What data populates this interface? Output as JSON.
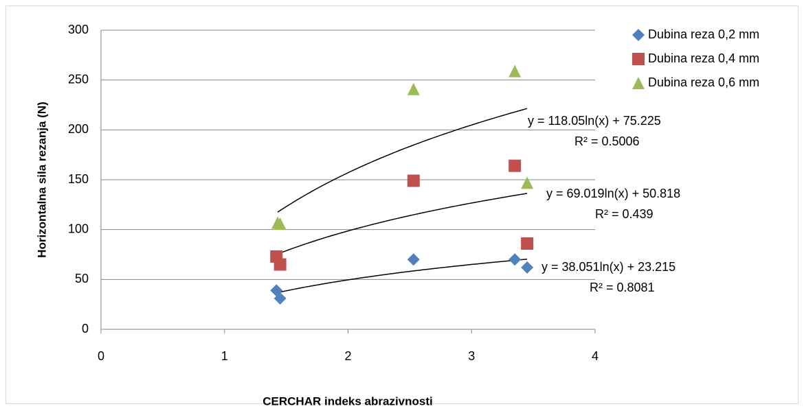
{
  "chart_data": {
    "type": "scatter",
    "xlabel": "CERCHAR indeks abrazivnosti",
    "ylabel": "Horizontalna sila rezanja (N)",
    "xlim": [
      0,
      4
    ],
    "xticks": [
      0,
      1,
      2,
      3,
      4
    ],
    "ylim": [
      0,
      300
    ],
    "yticks": [
      0,
      50,
      100,
      150,
      200,
      250,
      300
    ],
    "grid": true,
    "legend": "right",
    "series": [
      {
        "name": "Dubina reza 0,2 mm",
        "color": "#4f81bd",
        "marker": "diamond",
        "x": [
          1.42,
          1.45,
          2.53,
          3.35,
          3.45
        ],
        "values": [
          39,
          31,
          70,
          70,
          62
        ],
        "trendline": "y = 38.051ln(x) + 23.215",
        "r2": "R² = 0.8081"
      },
      {
        "name": "Dubina reza 0,4 mm",
        "color": "#c0504d",
        "marker": "square",
        "x": [
          1.42,
          1.45,
          2.53,
          3.35,
          3.45
        ],
        "values": [
          73,
          65,
          149,
          164,
          86
        ],
        "trendline": "y = 69.019ln(x) + 50.818",
        "r2": "R² = 0.439"
      },
      {
        "name": "Dubina reza 0,6 mm",
        "color": "#9bbb59",
        "marker": "triangle",
        "x": [
          1.43,
          1.45,
          2.53,
          3.35,
          3.45
        ],
        "values": [
          107,
          106,
          241,
          259,
          147
        ],
        "trendline": "y = 118.05ln(x) + 75.225",
        "r2": "R² = 0.5006"
      }
    ]
  }
}
